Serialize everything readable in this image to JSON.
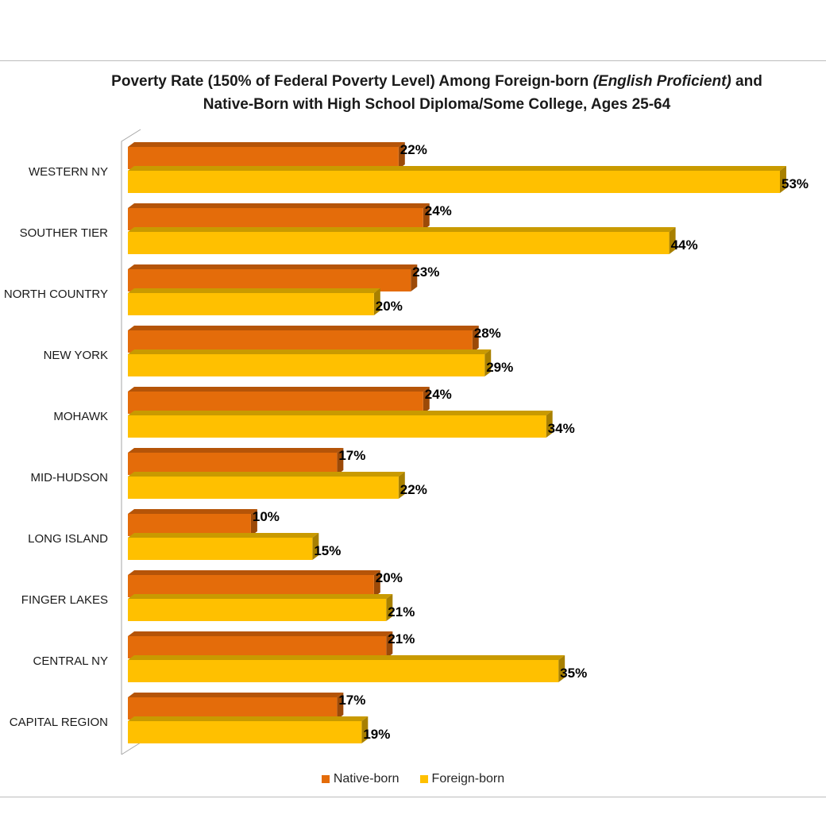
{
  "chart_data": {
    "type": "bar",
    "orientation": "horizontal",
    "title": {
      "part1": "Poverty Rate (150% of Federal Poverty Level) Among Foreign-born ",
      "part2": "(English Proficient)",
      "part3": " and",
      "line2": "Native-Born  with High School Diploma/Some College, Ages 25-64"
    },
    "categories": [
      "WESTERN NY",
      "SOUTHER TIER",
      "NORTH COUNTRY",
      "NEW YORK",
      "MOHAWK",
      "MID-HUDSON",
      "LONG ISLAND",
      "FINGER LAKES",
      "CENTRAL NY",
      "CAPITAL REGION"
    ],
    "series": [
      {
        "name": "Native-born",
        "values": [
          22,
          24,
          23,
          28,
          24,
          17,
          10,
          20,
          21,
          17
        ],
        "labels": [
          "22%",
          "24%",
          "23%",
          "28%",
          "24%",
          "17%",
          "10%",
          "20%",
          "21%",
          "17%"
        ],
        "color": "#e46c0a",
        "top_color": "#b55408",
        "side_color": "#9c4a08"
      },
      {
        "name": "Foreign-born",
        "values": [
          53,
          44,
          20,
          29,
          34,
          22,
          15,
          21,
          35,
          19
        ],
        "labels": [
          "53%",
          "44%",
          "20%",
          "29%",
          "34%",
          "22%",
          "15%",
          "21%",
          "35%",
          "19%"
        ],
        "color": "#ffc000",
        "top_color": "#c99a00",
        "side_color": "#a88000"
      }
    ],
    "value_format": "percent",
    "xlim": [
      0,
      53
    ],
    "grid": false,
    "legend_position": "bottom",
    "style": "3d"
  }
}
